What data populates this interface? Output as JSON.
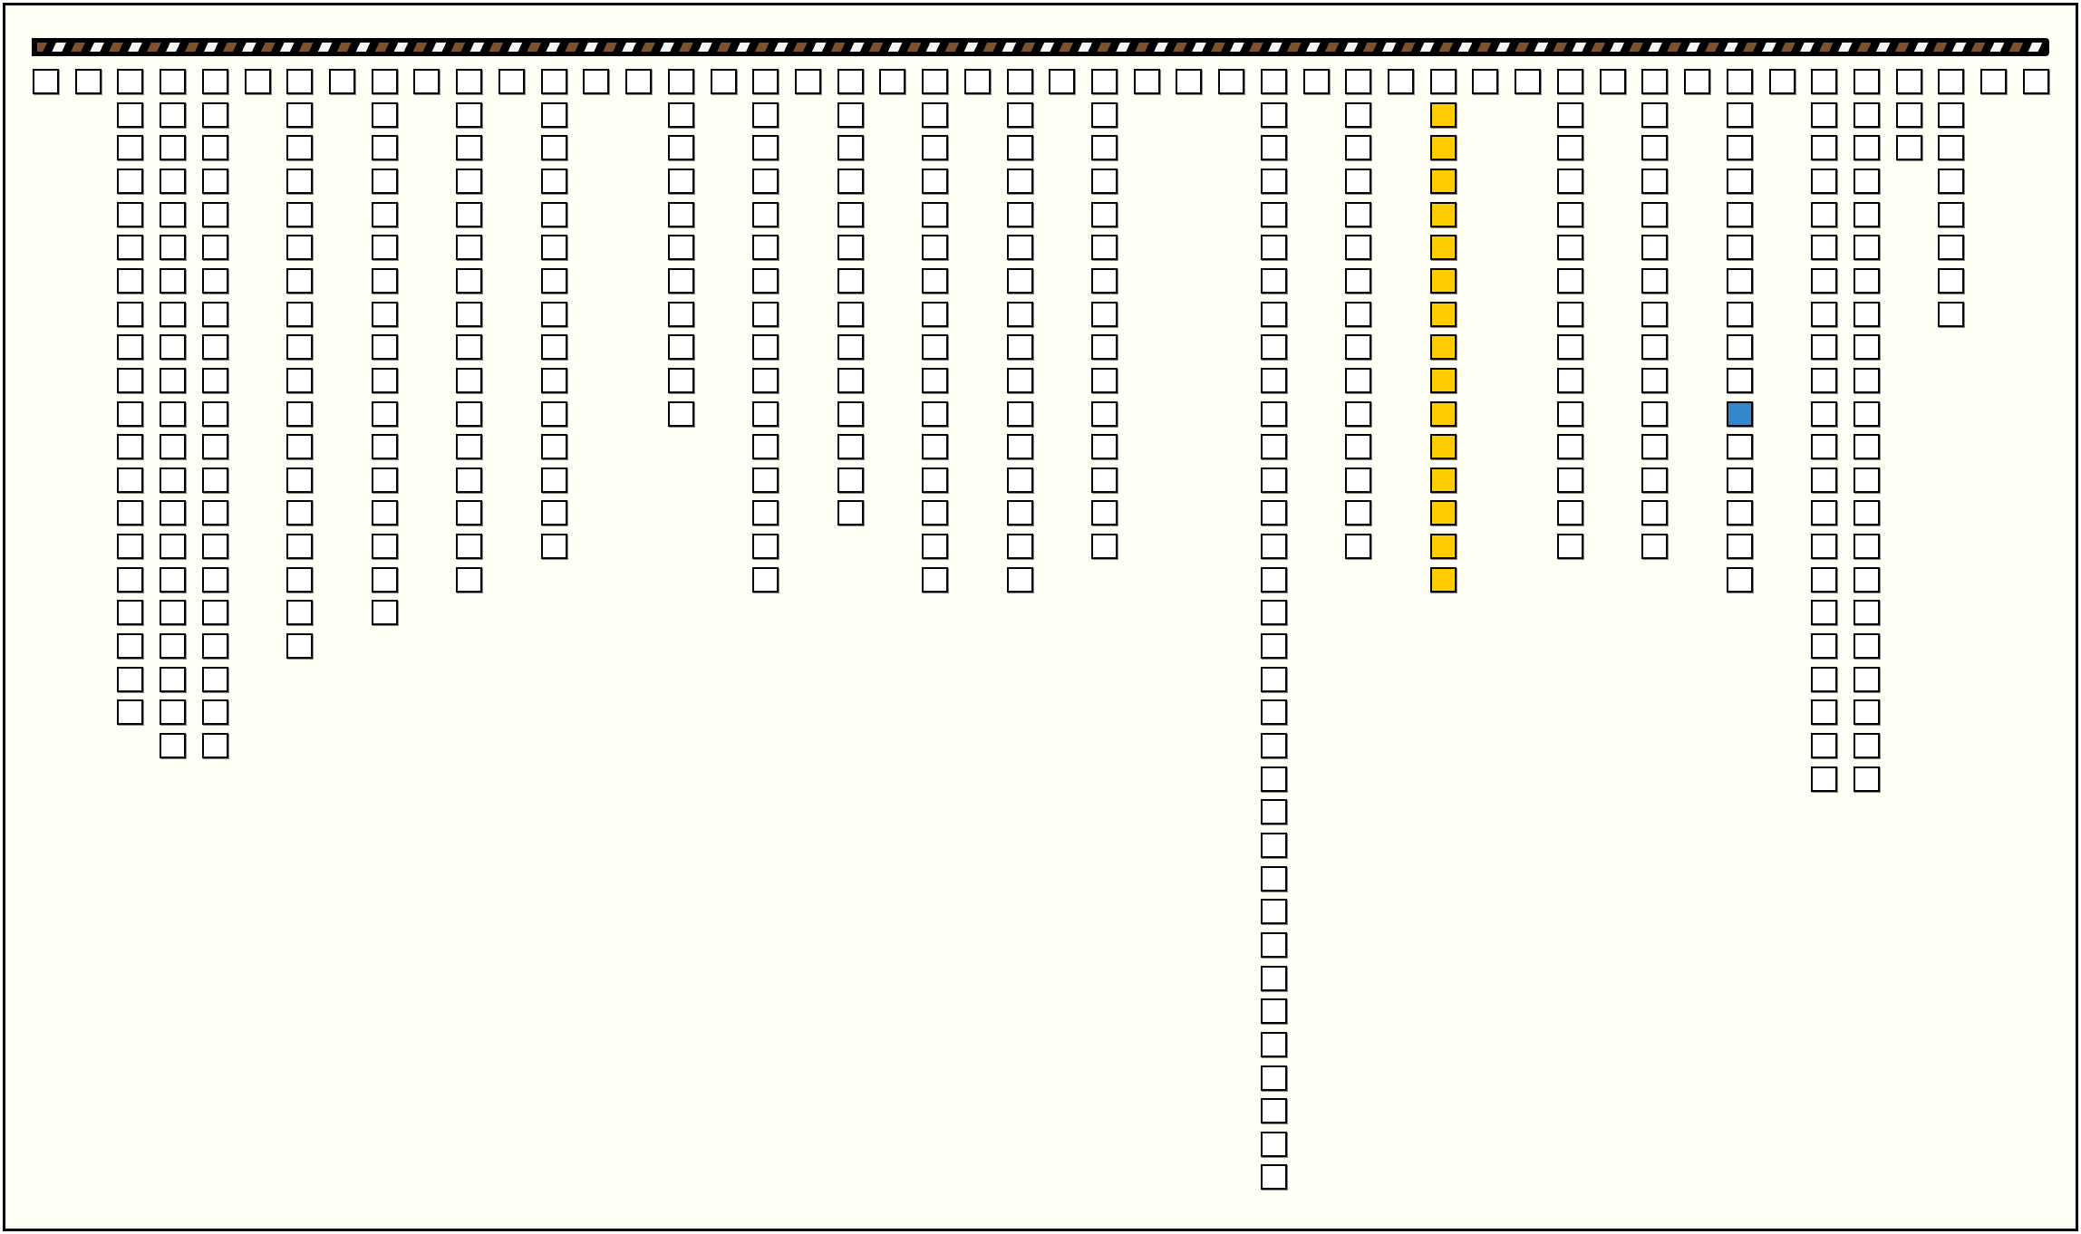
{
  "progress_bar": {
    "style": "striped",
    "stripe_colors": [
      "#7a5230",
      "#f4f4f4"
    ]
  },
  "colors": {
    "empty": "#ffffff",
    "highlight_yellow": "#ffcc00",
    "highlight_blue": "#3388cc",
    "background": "#fffff5"
  },
  "columns": [
    {
      "height": 1
    },
    {
      "height": 1
    },
    {
      "height": 20
    },
    {
      "height": 21
    },
    {
      "height": 21
    },
    {
      "height": 1
    },
    {
      "height": 18
    },
    {
      "height": 1
    },
    {
      "height": 17
    },
    {
      "height": 1
    },
    {
      "height": 16
    },
    {
      "height": 1
    },
    {
      "height": 15
    },
    {
      "height": 1
    },
    {
      "height": 1
    },
    {
      "height": 11
    },
    {
      "height": 1
    },
    {
      "height": 16
    },
    {
      "height": 1
    },
    {
      "height": 14
    },
    {
      "height": 1
    },
    {
      "height": 16
    },
    {
      "height": 1
    },
    {
      "height": 16
    },
    {
      "height": 1
    },
    {
      "height": 15
    },
    {
      "height": 1
    },
    {
      "height": 1
    },
    {
      "height": 1
    },
    {
      "height": 34
    },
    {
      "height": 1
    },
    {
      "height": 15
    },
    {
      "height": 1
    },
    {
      "height": 16,
      "yellow_from": 1
    },
    {
      "height": 1
    },
    {
      "height": 1
    },
    {
      "height": 15
    },
    {
      "height": 1
    },
    {
      "height": 15
    },
    {
      "height": 1
    },
    {
      "height": 16,
      "blue_at": 10
    },
    {
      "height": 1
    },
    {
      "height": 22
    },
    {
      "height": 22
    },
    {
      "height": 3
    },
    {
      "height": 8
    },
    {
      "height": 1
    },
    {
      "height": 1
    }
  ]
}
